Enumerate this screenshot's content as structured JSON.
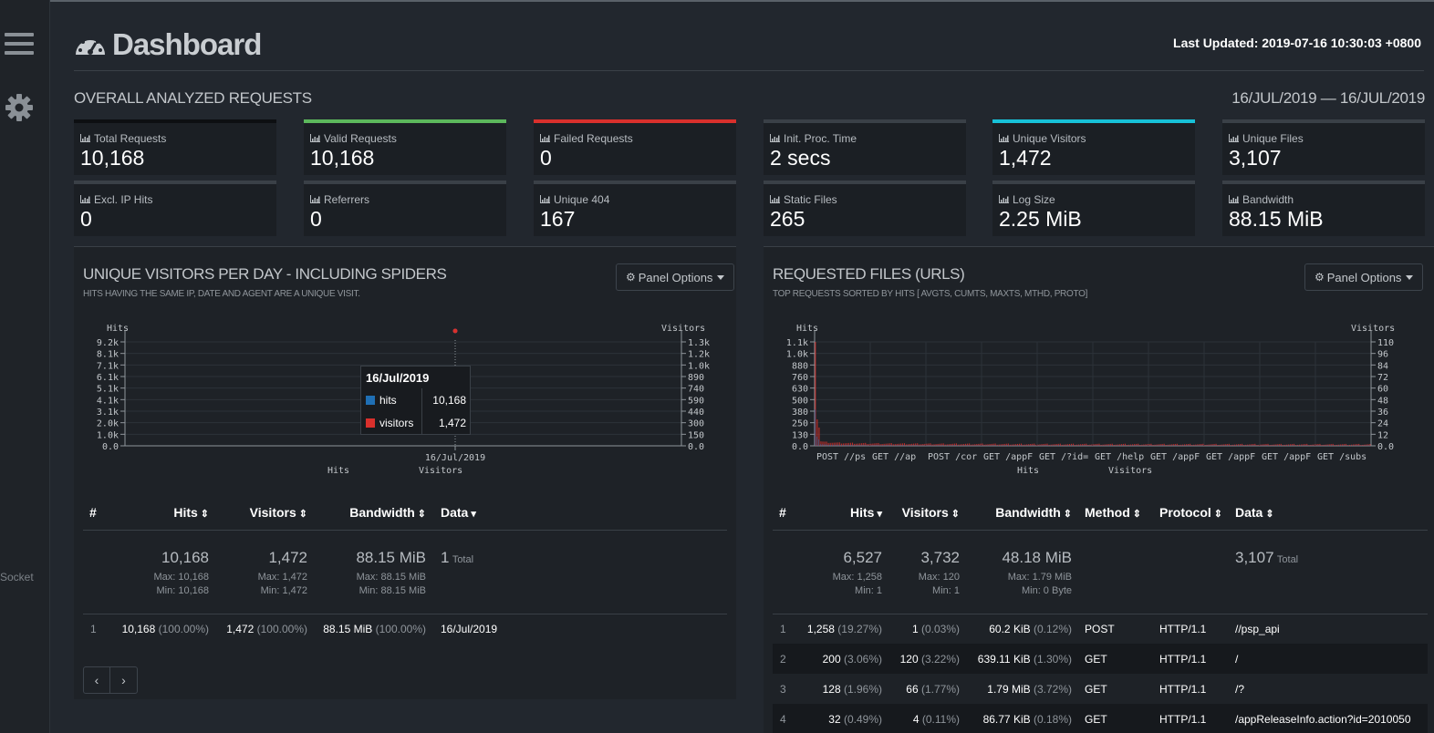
{
  "rail": {
    "socket_label": "Socket"
  },
  "header": {
    "title": "Dashboard",
    "last_updated": "Last Updated: 2019-07-16 10:30:03 +0800"
  },
  "overall": {
    "heading": "OVERALL ANALYZED REQUESTS",
    "date_range": "16/JUL/2019 — 16/JUL/2019",
    "cards": [
      {
        "label": "Total Requests",
        "value": "10,168",
        "accent": "#0d0f12"
      },
      {
        "label": "Valid Requests",
        "value": "10,168",
        "accent": "#5cb85c"
      },
      {
        "label": "Failed Requests",
        "value": "0",
        "accent": "#d9302c"
      },
      {
        "label": "Init. Proc. Time",
        "value": "2 secs",
        "accent": "#3a4047"
      },
      {
        "label": "Unique Visitors",
        "value": "1,472",
        "accent": "#17c1d8"
      },
      {
        "label": "Unique Files",
        "value": "3,107",
        "accent": "#3a4047"
      },
      {
        "label": "Excl. IP Hits",
        "value": "0",
        "accent": "#3a4047"
      },
      {
        "label": "Referrers",
        "value": "0",
        "accent": "#3a4047"
      },
      {
        "label": "Unique 404",
        "value": "167",
        "accent": "#3a4047"
      },
      {
        "label": "Static Files",
        "value": "265",
        "accent": "#3a4047"
      },
      {
        "label": "Log Size",
        "value": "2.25 MiB",
        "accent": "#3a4047"
      },
      {
        "label": "Bandwidth",
        "value": "88.15 MiB",
        "accent": "#3a4047"
      }
    ]
  },
  "visitors_panel": {
    "title": "UNIQUE VISITORS PER DAY - INCLUDING SPIDERS",
    "subtitle": "HITS HAVING THE SAME IP, DATE AND AGENT ARE A UNIQUE VISIT.",
    "options_label": "Panel Options",
    "tooltip": {
      "title": "16/Jul/2019",
      "rows": [
        {
          "name": "hits",
          "value": "10,168",
          "color": "#1f6fb4"
        },
        {
          "name": "visitors",
          "value": "1,472",
          "color": "#d9302c"
        }
      ]
    },
    "table": {
      "headers": [
        "#",
        "Hits",
        "Visitors",
        "Bandwidth",
        "Data"
      ],
      "totals": {
        "hits": "10,168",
        "hits_max": "Max: 10,168",
        "hits_min": "Min: 10,168",
        "visitors": "1,472",
        "visitors_max": "Max: 1,472",
        "visitors_min": "Min: 1,472",
        "bandwidth": "88.15 MiB",
        "bandwidth_max": "Max: 88.15 MiB",
        "bandwidth_min": "Min: 88.15 MiB",
        "data": "1",
        "data_unit": "Total"
      },
      "rows": [
        {
          "n": "1",
          "hits": "10,168",
          "hits_pct": "(100.00%)",
          "visitors": "1,472",
          "visitors_pct": "(100.00%)",
          "bw": "88.15 MiB",
          "bw_pct": "(100.00%)",
          "data": "16/Jul/2019"
        }
      ]
    },
    "pager": {
      "prev": "‹",
      "next": "›"
    }
  },
  "files_panel": {
    "title": "REQUESTED FILES (URLS)",
    "subtitle": "TOP REQUESTS SORTED BY HITS [ AVGTS, CUMTS, MAXTS, MTHD, PROTO]",
    "options_label": "Panel Options",
    "table": {
      "headers": [
        "#",
        "Hits",
        "Visitors",
        "Bandwidth",
        "Method",
        "Protocol",
        "Data"
      ],
      "totals": {
        "hits": "6,527",
        "hits_max": "Max: 1,258",
        "hits_min": "Min: 1",
        "visitors": "3,732",
        "visitors_max": "Max: 120",
        "visitors_min": "Min: 1",
        "bandwidth": "48.18 MiB",
        "bandwidth_max": "Max: 1.79 MiB",
        "bandwidth_min": "Min: 0 Byte",
        "data": "3,107",
        "data_unit": "Total"
      },
      "rows": [
        {
          "n": "1",
          "hits": "1,258",
          "hits_pct": "(19.27%)",
          "visitors": "1",
          "visitors_pct": "(0.03%)",
          "bw": "60.2 KiB",
          "bw_pct": "(0.12%)",
          "method": "POST",
          "protocol": "HTTP/1.1",
          "data": "//psp_api"
        },
        {
          "n": "2",
          "hits": "200",
          "hits_pct": "(3.06%)",
          "visitors": "120",
          "visitors_pct": "(3.22%)",
          "bw": "639.11 KiB",
          "bw_pct": "(1.30%)",
          "method": "GET",
          "protocol": "HTTP/1.1",
          "data": "/"
        },
        {
          "n": "3",
          "hits": "128",
          "hits_pct": "(1.96%)",
          "visitors": "66",
          "visitors_pct": "(1.77%)",
          "bw": "1.79 MiB",
          "bw_pct": "(3.72%)",
          "method": "GET",
          "protocol": "HTTP/1.1",
          "data": "/?"
        },
        {
          "n": "4",
          "hits": "32",
          "hits_pct": "(0.49%)",
          "visitors": "4",
          "visitors_pct": "(0.11%)",
          "bw": "86.77 KiB",
          "bw_pct": "(0.18%)",
          "method": "GET",
          "protocol": "HTTP/1.1",
          "data": "/appReleaseInfo.action?id=2010050"
        }
      ]
    }
  },
  "chart_data": [
    {
      "type": "line",
      "x": [
        "16/Jul/2019"
      ],
      "series": [
        {
          "name": "hits",
          "values": [
            10168
          ],
          "color": "#1f6fb4"
        },
        {
          "name": "visitors",
          "values": [
            1472
          ],
          "color": "#d9302c"
        }
      ],
      "ylabel": "Hits",
      "y2label": "Visitors",
      "yticks": [
        "0.0",
        "1.0k",
        "2.0k",
        "3.1k",
        "4.1k",
        "5.1k",
        "6.1k",
        "7.1k",
        "8.1k",
        "9.2k"
      ],
      "y2ticks": [
        "0.0",
        "150",
        "300",
        "440",
        "590",
        "740",
        "890",
        "1.0k",
        "1.2k",
        "1.3k"
      ],
      "xlabel_left": "Hits",
      "xlabel_right": "Visitors"
    },
    {
      "type": "bar",
      "categories": [
        "POST //ps",
        "GET //ap",
        "POST /cor",
        "GET /appF",
        "GET /?id=",
        "GET /help",
        "GET /appF",
        "GET /appF",
        "GET /appF",
        "GET /subs"
      ],
      "series": [
        {
          "name": "hits",
          "color": "#1f6fb4"
        },
        {
          "name": "visitors",
          "color": "#d9302c"
        }
      ],
      "ylabel": "Hits",
      "y2label": "Visitors",
      "yticks": [
        "0.0",
        "130",
        "250",
        "380",
        "500",
        "630",
        "760",
        "880",
        "1.0k",
        "1.1k"
      ],
      "y2ticks": [
        "0.0",
        "12",
        "24",
        "36",
        "48",
        "60",
        "72",
        "84",
        "96",
        "110"
      ],
      "xlabel_left": "Hits",
      "xlabel_right": "Visitors"
    }
  ]
}
